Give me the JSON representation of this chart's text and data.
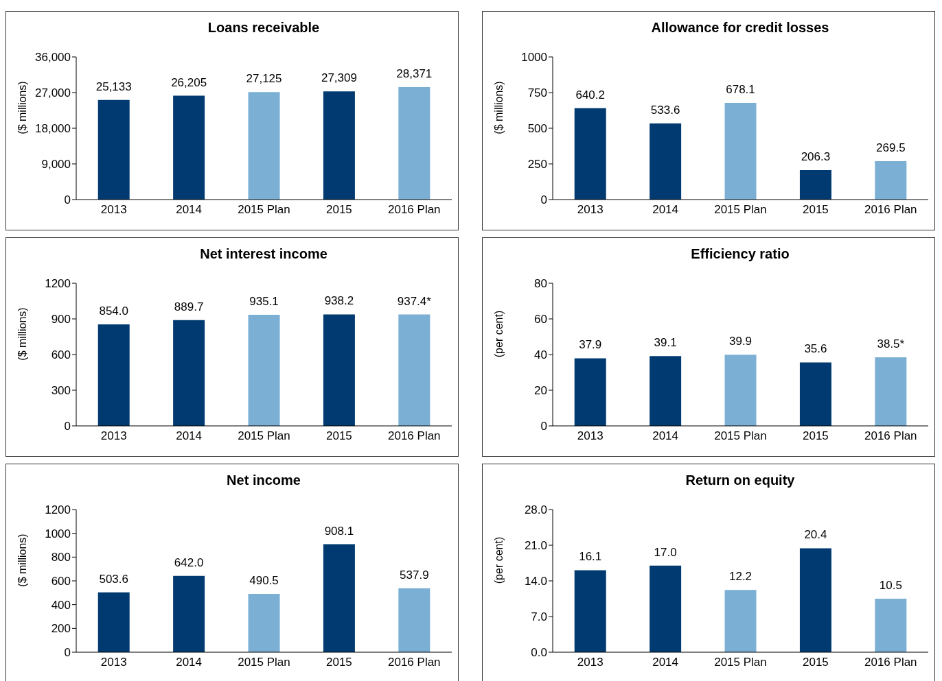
{
  "chart_data": [
    {
      "type": "bar",
      "title": "Loans receivable",
      "ylabel": "($ millions)",
      "categories": [
        "2013",
        "2014",
        "2015 Plan",
        "2015",
        "2016 Plan"
      ],
      "values": [
        25133,
        26205,
        27125,
        27309,
        28371
      ],
      "colors": [
        "#003a70",
        "#003a70",
        "#7bafd4",
        "#003a70",
        "#7bafd4"
      ],
      "value_labels": [
        "25,133",
        "26,205",
        "27,125",
        "27,309",
        "28,371"
      ],
      "ylim": [
        0,
        36000
      ],
      "yticks": [
        0,
        {
          "value": 9000,
          "label": "9,000"
        },
        {
          "value": 18000,
          "label": "18,000"
        },
        {
          "value": 27000,
          "label": "27,000"
        },
        {
          "value": 36000,
          "label": "36,000"
        }
      ],
      "grid": false,
      "legend": false
    },
    {
      "type": "bar",
      "title": "Allowance for credit losses",
      "ylabel": "($ millions)",
      "categories": [
        "2013",
        "2014",
        "2015 Plan",
        "2015",
        "2016 Plan"
      ],
      "values": [
        640.2,
        533.6,
        678.1,
        206.3,
        269.5
      ],
      "colors": [
        "#003a70",
        "#003a70",
        "#7bafd4",
        "#003a70",
        "#7bafd4"
      ],
      "data_labels": true,
      "ylim": [
        0,
        1000
      ],
      "yticks": [
        0,
        250,
        500,
        750,
        1000
      ],
      "grid": false,
      "legend": false
    },
    {
      "type": "bar",
      "title": "Net interest income",
      "ylabel": "($ millions)",
      "categories": [
        "2013",
        "2014",
        "2015 Plan",
        "2015",
        "2016 Plan"
      ],
      "values": [
        854.0,
        889.7,
        935.1,
        938.2,
        937.4
      ],
      "colors": [
        "#003a70",
        "#003a70",
        "#7bafd4",
        "#003a70",
        "#7bafd4"
      ],
      "value_labels": [
        "854.0",
        "889.7",
        "935.1",
        "938.2",
        "937.4*"
      ],
      "ylim": [
        0,
        1200
      ],
      "yticks": [
        0,
        300,
        600,
        900,
        1200
      ],
      "grid": false,
      "legend": false
    },
    {
      "type": "bar",
      "title": "Efficiency ratio",
      "ylabel": "(per cent)",
      "categories": [
        "2013",
        "2014",
        "2015 Plan",
        "2015",
        "2016 Plan"
      ],
      "values": [
        37.9,
        39.1,
        39.9,
        35.6,
        38.5
      ],
      "colors": [
        "#003a70",
        "#003a70",
        "#7bafd4",
        "#003a70",
        "#7bafd4"
      ],
      "value_labels": [
        "37.9",
        "39.1",
        "39.9",
        "35.6",
        "38.5*"
      ],
      "ylim": [
        0,
        80
      ],
      "yticks": [
        0,
        20,
        40,
        60,
        80
      ],
      "grid": false,
      "legend": false
    },
    {
      "type": "bar",
      "title": "Net income",
      "ylabel": "($ millions)",
      "categories": [
        "2013",
        "2014",
        "2015 Plan",
        "2015",
        "2016 Plan"
      ],
      "values": [
        503.6,
        642.0,
        490.5,
        908.1,
        537.9
      ],
      "colors": [
        "#003a70",
        "#003a70",
        "#7bafd4",
        "#003a70",
        "#7bafd4"
      ],
      "value_labels": [
        "503.6",
        "642.0",
        "490.5",
        "908.1",
        "537.9"
      ],
      "ylim": [
        0,
        1200
      ],
      "yticks": [
        0,
        200,
        400,
        600,
        800,
        1000,
        1200
      ],
      "grid": false,
      "legend": false
    },
    {
      "type": "bar",
      "title": "Return on equity",
      "ylabel": "(per cent)",
      "categories": [
        "2013",
        "2014",
        "2015 Plan",
        "2015",
        "2016 Plan"
      ],
      "values": [
        16.1,
        17.0,
        12.2,
        20.4,
        10.5
      ],
      "colors": [
        "#003a70",
        "#003a70",
        "#7bafd4",
        "#003a70",
        "#7bafd4"
      ],
      "value_labels": [
        "16.1",
        "17.0",
        "12.2",
        "20.4",
        "10.5"
      ],
      "ylim": [
        0,
        28.0
      ],
      "yticks": [
        {
          "value": 0,
          "label": "0.0"
        },
        {
          "value": 7,
          "label": "7.0"
        },
        {
          "value": 14,
          "label": "14.0"
        },
        {
          "value": 21,
          "label": "21.0"
        },
        {
          "value": 28,
          "label": "28.0"
        }
      ],
      "grid": false,
      "legend": false
    }
  ]
}
